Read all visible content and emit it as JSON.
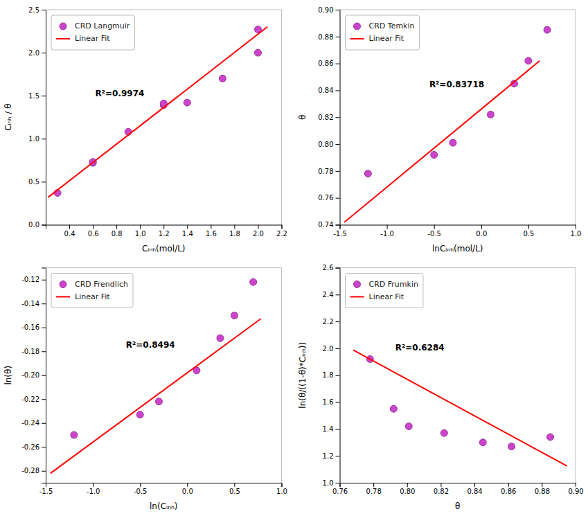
{
  "chart_data": [
    {
      "type": "scatter",
      "xlabel": "Cᵢₙₕ(mol/L)",
      "ylabel": "Cᵢₙₕ / θ",
      "series": [
        {
          "name": "CRD Langmuir",
          "type": "scatter",
          "marker": "circle",
          "color": "#CC44CC",
          "x": [
            0.3,
            0.6,
            0.6,
            0.9,
            1.2,
            1.2,
            1.4,
            1.7,
            2.0,
            2.0
          ],
          "values": [
            0.37,
            0.72,
            0.73,
            1.08,
            1.39,
            1.41,
            1.42,
            1.7,
            2.0,
            2.27
          ]
        },
        {
          "name": "Linear Fit",
          "type": "line",
          "line_style": "solid",
          "color": "red",
          "x": [
            0.22,
            2.08
          ],
          "values": [
            0.3193,
            2.3002
          ]
        }
      ],
      "annotations": [
        {
          "text": "R²=0.9974",
          "x": 0.62,
          "y": 1.52
        }
      ],
      "xlim": [
        0.2,
        2.2
      ],
      "xticks": [
        0.4,
        0.6,
        0.8,
        {
          "value": 1.0,
          "label": "1.0"
        },
        1.2,
        1.4,
        1.6,
        1.8,
        {
          "value": 2.0,
          "label": "2.0"
        },
        2.2
      ],
      "ylim": [
        0,
        2.5
      ],
      "yticks": [
        {
          "value": 0,
          "label": "0.0"
        },
        0.5,
        {
          "value": 1.0,
          "label": "1.0"
        },
        1.5,
        {
          "value": 2.0,
          "label": "2.0"
        },
        2.5
      ],
      "grid": false,
      "legend": "upper left"
    },
    {
      "type": "scatter",
      "xlabel": "lnCᵢₙₕ(mol/L)",
      "ylabel": "θ",
      "series": [
        {
          "name": "CRD Temkin",
          "type": "scatter",
          "marker": "circle",
          "color": "#CC44CC",
          "x": [
            -1.2,
            -0.5,
            -0.3,
            0.1,
            0.35,
            0.5,
            0.7
          ],
          "values": [
            0.778,
            0.792,
            0.801,
            0.822,
            0.845,
            0.862,
            0.885
          ]
        },
        {
          "name": "Linear Fit",
          "type": "line",
          "line_style": "solid",
          "color": "red",
          "x": [
            -1.45,
            0.62
          ],
          "values": [
            0.7419,
            0.86196
          ]
        }
      ],
      "annotations": [
        {
          "text": "R²=0.83718",
          "x": -0.55,
          "y": 0.844
        }
      ],
      "xlim": [
        -1.5,
        1.0
      ],
      "xticks": [
        -1.5,
        {
          "value": -1.0,
          "label": "-1.0"
        },
        -0.5,
        {
          "value": 0,
          "label": "0.0"
        },
        0.5,
        {
          "value": 1.0,
          "label": "1.0"
        }
      ],
      "ylim": [
        0.74,
        0.9
      ],
      "yticks": [
        0.74,
        0.76,
        0.78,
        {
          "value": 0.8,
          "label": "0.80"
        },
        0.82,
        0.84,
        0.86,
        0.88,
        {
          "value": 0.9,
          "label": "0.90"
        }
      ],
      "grid": false,
      "legend": "upper left"
    },
    {
      "type": "scatter",
      "xlabel": "ln(Cᵢₙₕ)",
      "ylabel": "ln(θ)",
      "series": [
        {
          "name": "CRD Frendlich",
          "type": "scatter",
          "marker": "circle",
          "color": "#CC44CC",
          "x": [
            -1.2,
            -0.5,
            -0.3,
            0.1,
            0.35,
            0.5,
            0.7
          ],
          "values": [
            -0.25,
            -0.233,
            -0.222,
            -0.196,
            -0.169,
            -0.15,
            -0.122
          ]
        },
        {
          "name": "Linear Fit",
          "type": "line",
          "line_style": "solid",
          "color": "red",
          "x": [
            -1.45,
            0.78
          ],
          "values": [
            -0.2821,
            -0.15276
          ]
        }
      ],
      "annotations": [
        {
          "text": "R²=0.8494",
          "x": -0.65,
          "y": -0.175
        }
      ],
      "xlim": [
        -1.5,
        1.0
      ],
      "xticks": [
        -1.5,
        {
          "value": -1.0,
          "label": "-1.0"
        },
        -0.5,
        {
          "value": 0,
          "label": "0.0"
        },
        0.5,
        {
          "value": 1.0,
          "label": "1.0"
        }
      ],
      "ylim": [
        -0.29,
        -0.11
      ],
      "yticks": [
        -0.28,
        -0.26,
        -0.24,
        -0.22,
        {
          "value": -0.2,
          "label": "-0.20"
        },
        -0.18,
        -0.16,
        -0.14,
        -0.12
      ],
      "grid": false,
      "legend": "upper left"
    },
    {
      "type": "scatter",
      "xlabel": "θ",
      "ylabel": "ln(θ/((1-θ)*Cᵢₙₕ))",
      "series": [
        {
          "name": "CRD Frumkin",
          "type": "scatter",
          "marker": "circle",
          "color": "#CC44CC",
          "x": [
            0.778,
            0.792,
            0.801,
            0.822,
            0.845,
            0.862,
            0.885
          ],
          "values": [
            1.92,
            1.55,
            1.42,
            1.37,
            1.3,
            1.27,
            1.34
          ]
        },
        {
          "name": "Linear Fit",
          "type": "line",
          "line_style": "solid",
          "color": "red",
          "x": [
            0.768,
            0.895
          ],
          "values": [
            1.9876,
            1.124
          ]
        }
      ],
      "annotations": [
        {
          "text": "R²=0.6284",
          "x": 0.793,
          "y": 2.0
        }
      ],
      "xlim": [
        0.76,
        0.9
      ],
      "xticks": [
        0.76,
        0.78,
        {
          "value": 0.8,
          "label": "0.80"
        },
        0.82,
        0.84,
        0.86,
        0.88,
        {
          "value": 0.9,
          "label": "0.90"
        }
      ],
      "ylim": [
        1.0,
        2.6
      ],
      "yticks": [
        {
          "value": 1.0,
          "label": "1.0"
        },
        1.2,
        1.4,
        1.6,
        1.8,
        {
          "value": 2.0,
          "label": "2.0"
        },
        2.2,
        2.4,
        2.6
      ],
      "grid": false,
      "legend": "upper left"
    }
  ]
}
